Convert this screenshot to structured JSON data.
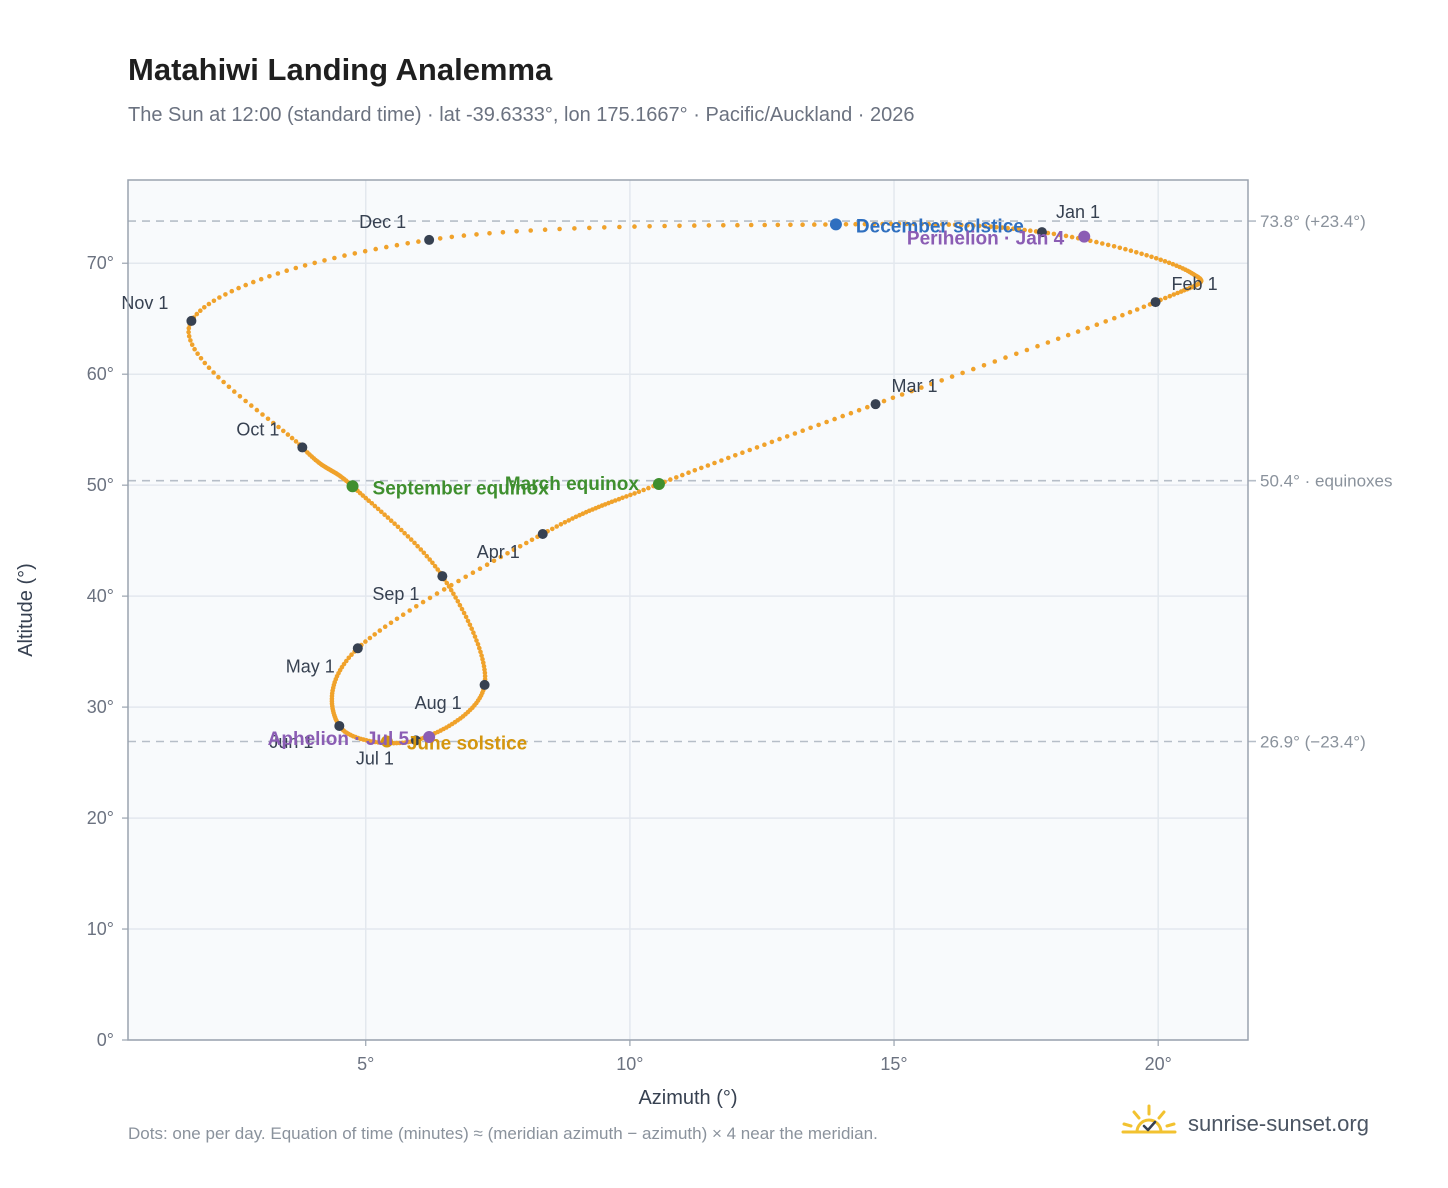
{
  "header": {
    "title": "Matahiwi Landing Analemma",
    "subtitle": "The Sun at 12:00 (standard time) · lat -39.6333°, lon 175.1667° · Pacific/Auckland · 2026"
  },
  "footer": {
    "note": "Dots: one per day. Equation of time (minutes) ≈ (meridian azimuth − azimuth) × 4 near the meridian.",
    "brand": "sunrise-sunset.org",
    "brand_icon": "sun-logo-icon"
  },
  "colors": {
    "path": "#f0a22b",
    "month": "#374151",
    "equinox": "#3f8f2f",
    "december_solstice": "#2f6fbf",
    "june_solstice": "#d4960f",
    "apsis": "#8b5db4",
    "grid": "#e3e8ee",
    "plot_bg": "#f8fafc",
    "frame": "#9aa3af",
    "refline": "#b6bec8"
  },
  "chart_data": {
    "type": "scatter",
    "xlabel": "Azimuth (°)",
    "ylabel": "Altitude (°)",
    "xlim": [
      0.5,
      21.7
    ],
    "ylim": [
      0,
      77.5
    ],
    "x_ticks": [
      5,
      10,
      15,
      20
    ],
    "x_tick_labels": [
      "5°",
      "10°",
      "15°",
      "20°"
    ],
    "y_ticks": [
      0,
      10,
      20,
      30,
      40,
      50,
      60,
      70
    ],
    "y_tick_labels": [
      "0°",
      "10°",
      "20°",
      "30°",
      "40°",
      "50°",
      "60°",
      "70°"
    ],
    "grid": true,
    "path_keypoints": [
      {
        "x": 17.8,
        "y": 72.8
      },
      {
        "x": 20.6,
        "y": 69.2
      },
      {
        "x": 19.95,
        "y": 66.5
      },
      {
        "x": 14.65,
        "y": 57.3
      },
      {
        "x": 10.55,
        "y": 50.1
      },
      {
        "x": 8.35,
        "y": 45.6
      },
      {
        "x": 4.85,
        "y": 35.3
      },
      {
        "x": 4.5,
        "y": 28.3
      },
      {
        "x": 5.95,
        "y": 27.0
      },
      {
        "x": 7.25,
        "y": 32.0
      },
      {
        "x": 6.45,
        "y": 41.8
      },
      {
        "x": 4.75,
        "y": 49.9
      },
      {
        "x": 3.8,
        "y": 53.4
      },
      {
        "x": 1.7,
        "y": 64.8
      },
      {
        "x": 6.2,
        "y": 72.1
      },
      {
        "x": 13.9,
        "y": 73.5
      },
      {
        "x": 17.8,
        "y": 72.8
      }
    ],
    "month_markers": [
      {
        "label": "Jan 1",
        "x": 17.8,
        "y": 72.8
      },
      {
        "label": "Feb 1",
        "x": 19.95,
        "y": 66.5
      },
      {
        "label": "Mar 1",
        "x": 14.65,
        "y": 57.3
      },
      {
        "label": "Apr 1",
        "x": 8.35,
        "y": 45.6
      },
      {
        "label": "May 1",
        "x": 4.85,
        "y": 35.3
      },
      {
        "label": "Jun 1",
        "x": 4.5,
        "y": 28.3
      },
      {
        "label": "Jul 1",
        "x": 5.95,
        "y": 27.0
      },
      {
        "label": "Aug 1",
        "x": 7.25,
        "y": 32.0
      },
      {
        "label": "Sep 1",
        "x": 6.45,
        "y": 41.8
      },
      {
        "label": "Oct 1",
        "x": 3.8,
        "y": 53.4
      },
      {
        "label": "Nov 1",
        "x": 1.7,
        "y": 64.8
      },
      {
        "label": "Dec 1",
        "x": 6.2,
        "y": 72.1
      }
    ],
    "events": [
      {
        "label": "December solstice",
        "x": 13.9,
        "y": 73.5,
        "kind": "december_solstice"
      },
      {
        "label": "Perihelion · Jan 4",
        "x": 18.6,
        "y": 72.4,
        "kind": "apsis"
      },
      {
        "label": "March equinox",
        "x": 10.55,
        "y": 50.1,
        "kind": "equinox"
      },
      {
        "label": "September equinox",
        "x": 4.75,
        "y": 49.9,
        "kind": "equinox"
      },
      {
        "label": "June solstice",
        "x": 5.4,
        "y": 26.9,
        "kind": "june_solstice"
      },
      {
        "label": "Aphelion · Jul 5",
        "x": 6.2,
        "y": 27.3,
        "kind": "apsis"
      }
    ],
    "reference_lines": [
      {
        "y": 73.8,
        "label": "73.8° (+23.4°)"
      },
      {
        "y": 50.4,
        "label": "50.4° · equinoxes"
      },
      {
        "y": 26.9,
        "label": "26.9° (−23.4°)"
      }
    ]
  }
}
